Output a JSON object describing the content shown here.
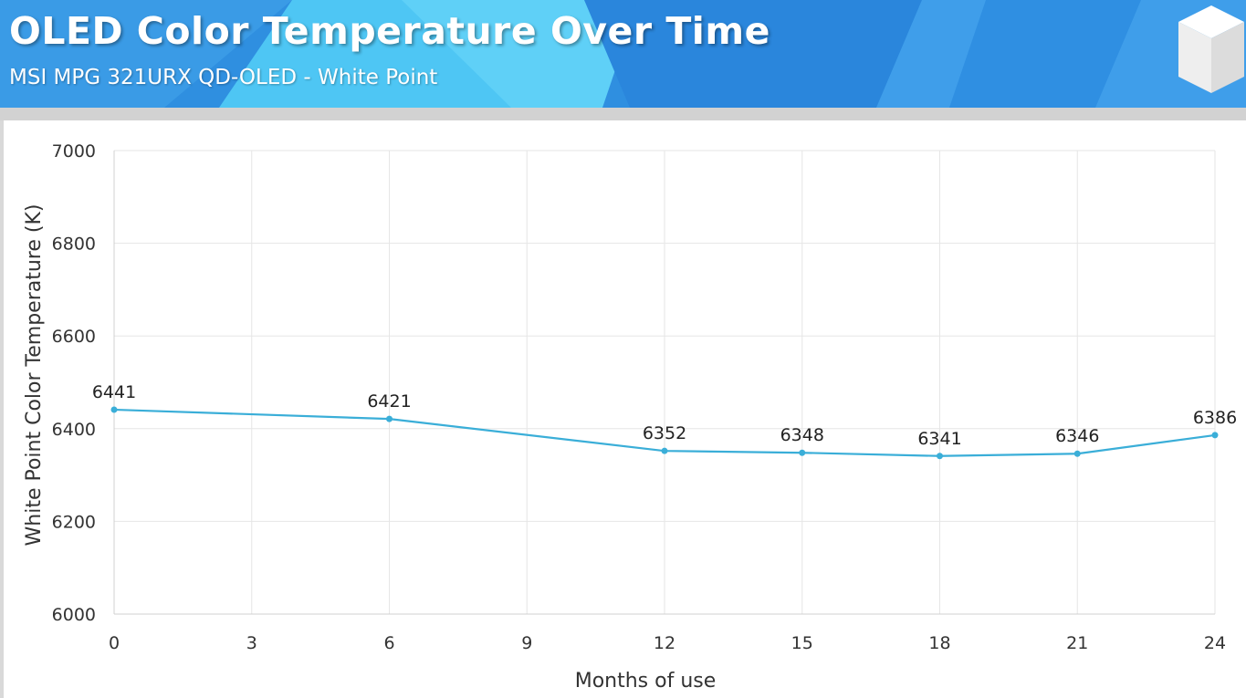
{
  "header": {
    "title": "OLED Color Temperature Over Time",
    "subtitle": "MSI MPG 321URX QD-OLED - White Point",
    "logo_icon": "cube-logo-icon"
  },
  "colors": {
    "header_blue": "#2f8fe0",
    "header_light": "#4cc8f5",
    "line": "#3aaed8",
    "grid": "#e6e6e6",
    "axis_text": "#333333"
  },
  "chart_data": {
    "type": "line",
    "title": "OLED Color Temperature Over Time",
    "subtitle": "MSI MPG 321URX QD-OLED - White Point",
    "xlabel": "Months of use",
    "ylabel": "White Point Color Temperature (K)",
    "xlim": [
      0,
      24
    ],
    "ylim": [
      6000,
      7000
    ],
    "xticks": [
      0,
      3,
      6,
      9,
      12,
      15,
      18,
      21,
      24
    ],
    "yticks": [
      6000,
      6200,
      6400,
      6600,
      6800,
      7000
    ],
    "grid": true,
    "legend": "none",
    "series": [
      {
        "x": [
          0,
          6,
          12,
          15,
          18,
          21,
          24
        ],
        "y": [
          6441,
          6421,
          6352,
          6348,
          6341,
          6346,
          6386
        ],
        "labels": [
          "6441",
          "6421",
          "6352",
          "6348",
          "6341",
          "6346",
          "6386"
        ]
      }
    ]
  }
}
